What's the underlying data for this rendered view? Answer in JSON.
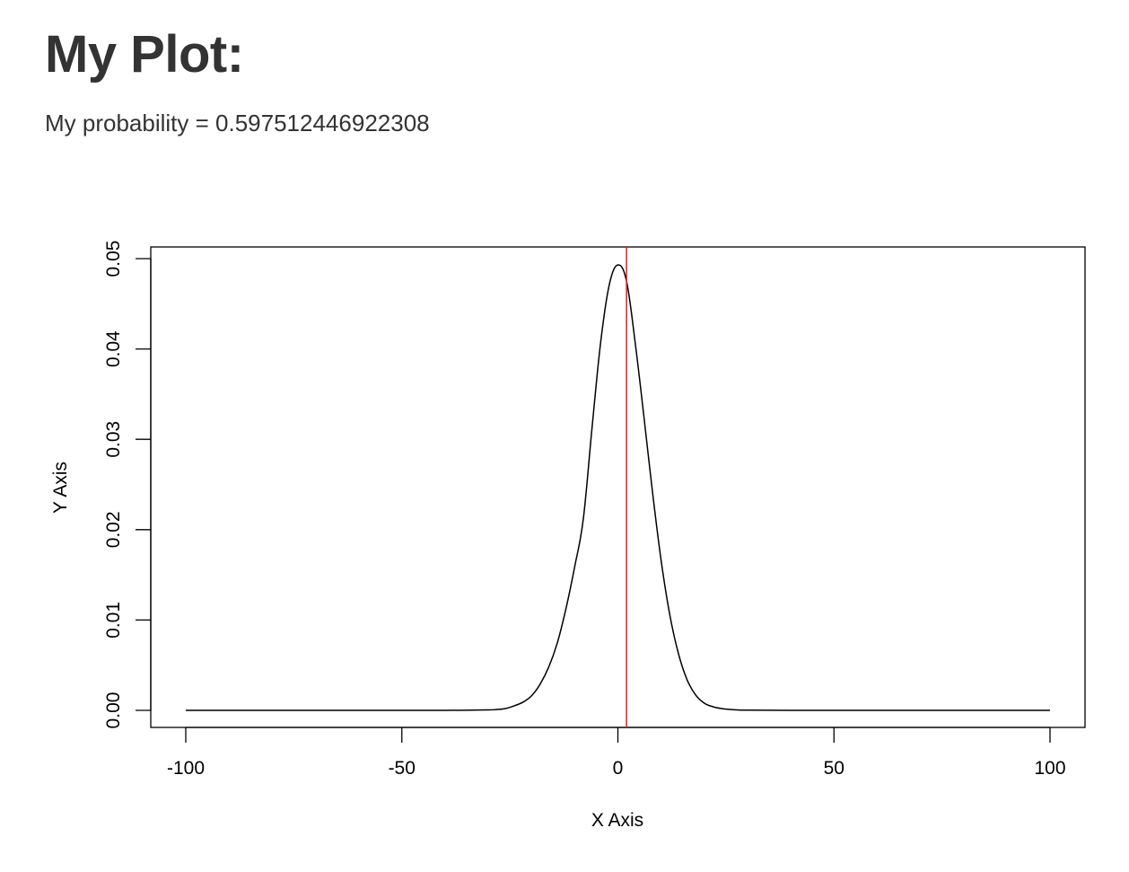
{
  "page": {
    "title": "My Plot:",
    "probability_label": "My probability = ",
    "probability_value": "0.597512446922308"
  },
  "chart_data": {
    "type": "line",
    "title": "",
    "xlabel": "X Axis",
    "ylabel": "Y Axis",
    "xlim": [
      -100,
      100
    ],
    "ylim": [
      0,
      0.05
    ],
    "x_ticks": [
      -100,
      -50,
      0,
      50,
      100
    ],
    "x_tick_labels": [
      "-100",
      "-50",
      "0",
      "50",
      "100"
    ],
    "y_ticks": [
      0,
      0.01,
      0.02,
      0.03,
      0.04,
      0.05
    ],
    "y_tick_labels": [
      "0.00",
      "0.01",
      "0.02",
      "0.03",
      "0.04",
      "0.05"
    ],
    "grid": false,
    "series": [
      {
        "color": "#000000",
        "x": [
          -100,
          -80,
          -60,
          -40,
          -30,
          -28,
          -26,
          -24,
          -22,
          -20,
          -18,
          -16,
          -14,
          -12,
          -10,
          -8,
          -6,
          -4,
          -2,
          0,
          2,
          4,
          6,
          8,
          10,
          12,
          14,
          16,
          18,
          20,
          22,
          24,
          26,
          28,
          30,
          40,
          60,
          80,
          100
        ],
        "values": [
          0,
          0,
          0,
          0,
          5e-05,
          0.0001,
          0.0002,
          0.0005,
          0.0009,
          0.0016,
          0.0029,
          0.0048,
          0.0075,
          0.0113,
          0.0159,
          0.0212,
          0.0312,
          0.0407,
          0.0471,
          0.0493,
          0.0475,
          0.0407,
          0.0326,
          0.0242,
          0.0166,
          0.0106,
          0.0063,
          0.0034,
          0.0017,
          0.0008,
          0.0004,
          0.0002,
          0.0001,
          4e-05,
          2e-05,
          0,
          0,
          0,
          0
        ]
      }
    ],
    "vline": {
      "x": 2,
      "color": "#e41a1c"
    }
  }
}
